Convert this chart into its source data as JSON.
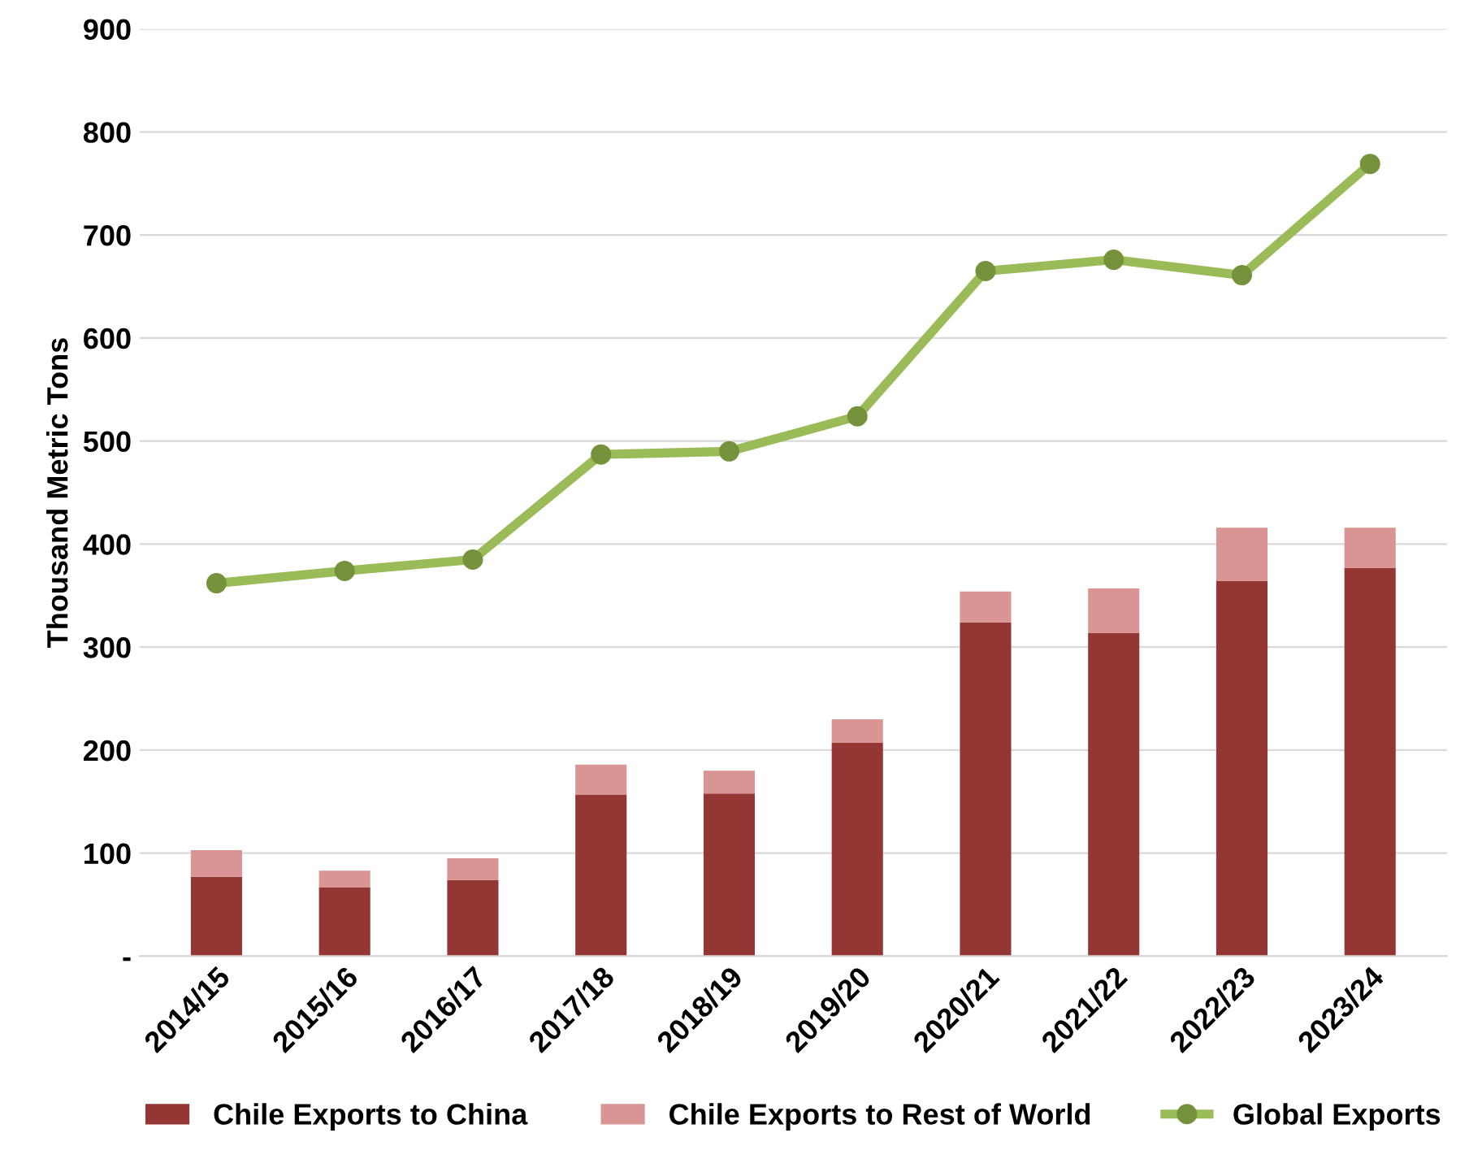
{
  "chart_data": {
    "type": "bar",
    "stacked": true,
    "ylabel": "Thousand Metric Tons",
    "categories": [
      "2014/15",
      "2015/16",
      "2016/17",
      "2017/18",
      "2018/19",
      "2019/20",
      "2020/21",
      "2021/22",
      "2022/23",
      "2023/24"
    ],
    "series": [
      {
        "name": "Chile Exports to China",
        "color": "#943634",
        "values": [
          77,
          67,
          74,
          157,
          158,
          207,
          324,
          314,
          364,
          377
        ]
      },
      {
        "name": "Chile Exports to Rest of World",
        "color": "#d99594",
        "values": [
          26,
          16,
          21,
          29,
          22,
          23,
          30,
          43,
          52,
          39
        ]
      },
      {
        "name": "Global Exports",
        "type": "line",
        "color": "#9bbb59",
        "marker": "circle",
        "values": [
          362,
          374,
          385,
          487,
          490,
          524,
          665,
          676,
          661,
          769
        ]
      }
    ],
    "ylim": [
      0,
      900
    ],
    "yticks": [
      {
        "value": 0,
        "label": "-"
      },
      100,
      200,
      300,
      400,
      500,
      600,
      700,
      800,
      900
    ],
    "grid": "y",
    "legend": "bottom"
  }
}
